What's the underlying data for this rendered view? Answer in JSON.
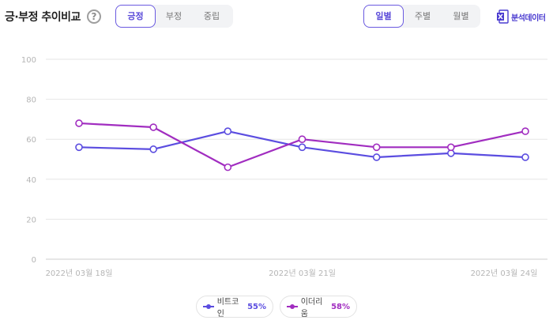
{
  "header": {
    "title": "긍·부정 추이비교",
    "help_glyph": "?",
    "sentiment_tabs": [
      {
        "label": "긍정",
        "active": true
      },
      {
        "label": "부정",
        "active": false
      },
      {
        "label": "중립",
        "active": false
      }
    ],
    "period_tabs": [
      {
        "label": "일별",
        "active": true
      },
      {
        "label": "주별",
        "active": false
      },
      {
        "label": "월별",
        "active": false
      }
    ],
    "export_label": "분석데이터",
    "export_icon": "excel-icon"
  },
  "colors": {
    "series1": "#5b4de0",
    "series2": "#a12dc0",
    "grid": "#e6e6e6",
    "axis": "#cccccc",
    "tick_text": "#b5b5b5",
    "accent": "#5a4ad9"
  },
  "chart_data": {
    "type": "line",
    "x": [
      "2022년 03월 18일",
      "2022년 03월 19일",
      "2022년 03월 20일",
      "2022년 03월 21일",
      "2022년 03월 22일",
      "2022년 03월 23일",
      "2022년 03월 24일"
    ],
    "x_tick_labels": [
      "2022년 03월 18일",
      "2022년 03월 21일",
      "2022년 03월 24일"
    ],
    "y_ticks": [
      0,
      20,
      40,
      60,
      80,
      100
    ],
    "ylim": [
      0,
      100
    ],
    "grid": true,
    "legend_position": "bottom",
    "series": [
      {
        "name": "비트코인",
        "values": [
          56,
          55,
          64,
          56,
          51,
          53,
          51
        ]
      },
      {
        "name": "이더리움",
        "values": [
          68,
          66,
          46,
          60,
          56,
          56,
          64
        ]
      }
    ]
  },
  "legend": [
    {
      "name": "비트코인",
      "pct": "55%"
    },
    {
      "name": "이더리움",
      "pct": "58%"
    }
  ]
}
